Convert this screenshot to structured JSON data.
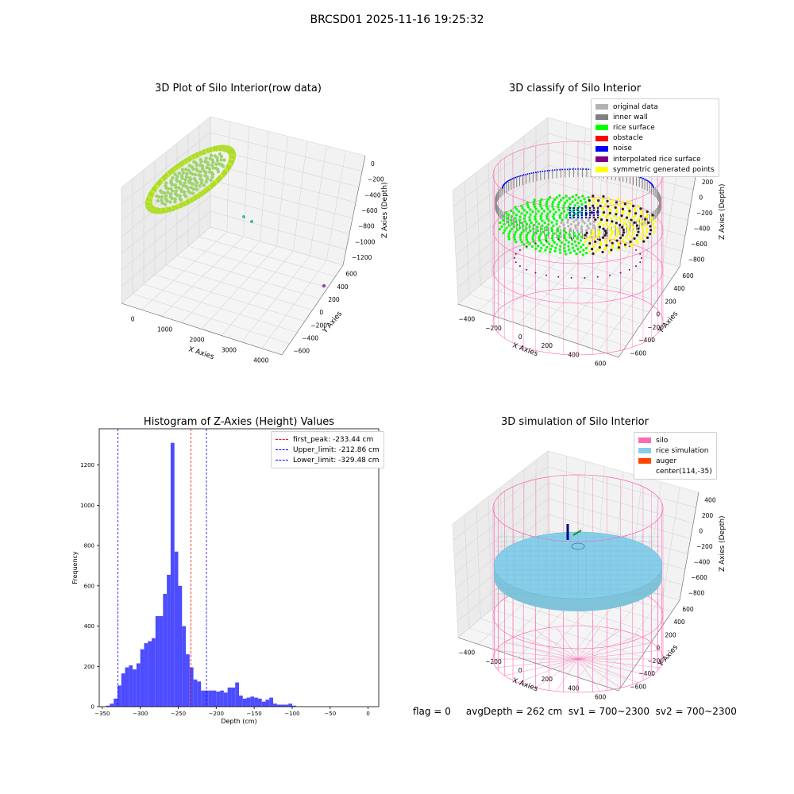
{
  "suptitle": "BRCSD01 2025-11-16 19:25:32",
  "footer": "flag = 0     avgDepth = 262 cm  sv1 = 700~2300  sv2 = 700~2300",
  "chart_data": [
    {
      "type": "scatter3d",
      "title": "3D Plot of Silo Interior(row data)",
      "xlabel": "X Axies",
      "ylabel": "Y Axies",
      "zlabel": "Z Axies (Depth)",
      "x_ticks": [
        "0",
        "1000",
        "2000",
        "3000",
        "4000"
      ],
      "y_ticks": [
        "600",
        "400",
        "200",
        "0",
        "−200",
        "−400",
        "−600"
      ],
      "z_ticks": [
        "0",
        "−200",
        "−400",
        "−600",
        "−800",
        "−1000",
        "−1200"
      ],
      "grid": true,
      "colors": {
        "main": "#a8dc32",
        "edge": "#d2e629",
        "outlier": "#3fb8a8",
        "far": "#8c4a9a"
      }
    },
    {
      "type": "scatter3d",
      "title": "3D classify of Silo Interior",
      "xlabel": "X Axies",
      "ylabel": "Y Axies",
      "zlabel": "Z Axies (Depth)",
      "x_ticks": [
        "−400",
        "−200",
        "0",
        "200",
        "400",
        "600"
      ],
      "y_ticks": [
        "600",
        "400",
        "200",
        "0",
        "−200",
        "−400",
        "−600"
      ],
      "z_ticks": [
        "400",
        "200",
        "0",
        "−200",
        "−400",
        "−600",
        "−800"
      ],
      "grid": true,
      "legend_position": "top-right",
      "legend": [
        {
          "label": "original data",
          "color": "#b2b2b2"
        },
        {
          "label": "inner wall",
          "color": "#808080"
        },
        {
          "label": "rice surface",
          "color": "#00ff00"
        },
        {
          "label": "obstacle",
          "color": "#ff0000"
        },
        {
          "label": "noise",
          "color": "#0000ff"
        },
        {
          "label": "interpolated rice surface",
          "color": "#800080"
        },
        {
          "label": "symmetric generated points",
          "color": "#ffff00"
        }
      ],
      "wire_color": "#ff69b4"
    },
    {
      "type": "bar",
      "title": "Histogram of Z-Axies (Height) Values",
      "xlabel": "Depth (cm)",
      "ylabel": "Frequency",
      "xlim": [
        -354,
        14
      ],
      "ylim": [
        0,
        1380
      ],
      "x_ticks": [
        -350,
        -300,
        -250,
        -200,
        -150,
        -100,
        -50,
        0
      ],
      "y_ticks": [
        0,
        200,
        400,
        600,
        800,
        1000,
        1200
      ],
      "bar_color": "#4d4dff",
      "bin_start": -345,
      "bin_width": 5,
      "values": [
        5,
        15,
        40,
        105,
        165,
        195,
        205,
        185,
        215,
        285,
        315,
        325,
        340,
        450,
        450,
        560,
        655,
        1310,
        770,
        600,
        400,
        260,
        195,
        135,
        125,
        80,
        80,
        80,
        80,
        75,
        80,
        70,
        95,
        95,
        120,
        55,
        40,
        45,
        50,
        45,
        40,
        25,
        35,
        45,
        15,
        10,
        10,
        10,
        15,
        5,
        0
      ],
      "lines": [
        {
          "label": "first_peak: -233.44 cm",
          "x": -233.44,
          "color": "#ff0000"
        },
        {
          "label": "Upper_limit: -212.86 cm",
          "x": -212.86,
          "color": "#0000ff"
        },
        {
          "label": "Lower_limit: -329.48 cm",
          "x": -329.48,
          "color": "#0000ff"
        }
      ],
      "legend_position": "top-right",
      "grid": false
    },
    {
      "type": "surface3d",
      "title": "3D simulation of Silo Interior",
      "xlabel": "X Axies",
      "ylabel": "Y Axies",
      "zlabel": "Z Axies (Depth)",
      "x_ticks": [
        "−400",
        "−200",
        "0",
        "200",
        "400",
        "600"
      ],
      "y_ticks": [
        "600",
        "400",
        "200",
        "0",
        "−200",
        "−400",
        "−600"
      ],
      "z_ticks": [
        "400",
        "200",
        "0",
        "−200",
        "−400",
        "−600",
        "−800"
      ],
      "grid": true,
      "legend_position": "top-right",
      "legend": [
        {
          "label": "silo",
          "color": "#ff69b4"
        },
        {
          "label": "rice simulation",
          "color": "#87ceeb"
        },
        {
          "label": "auger",
          "color": "#ff4500"
        },
        {
          "label": "center(114,-35)",
          "color": ""
        }
      ]
    }
  ]
}
